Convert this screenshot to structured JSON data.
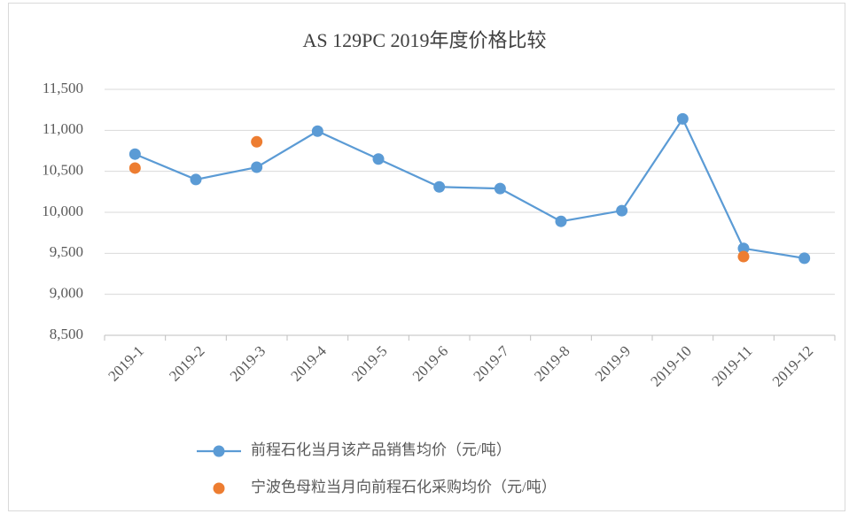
{
  "chart_data": {
    "type": "line",
    "title": "AS 129PC  2019年度价格比较",
    "categories": [
      "2019-1",
      "2019-2",
      "2019-3",
      "2019-4",
      "2019-5",
      "2019-6",
      "2019-7",
      "2019-8",
      "2019-9",
      "2019-10",
      "2019-11",
      "2019-12"
    ],
    "series": [
      {
        "name": "前程石化当月该产品销售均价（元/吨）",
        "color": "#5b9bd5",
        "show_line": true,
        "values": [
          10710,
          10400,
          10550,
          10990,
          10650,
          10310,
          10290,
          9890,
          10020,
          11140,
          9560,
          9440
        ]
      },
      {
        "name": "宁波色母粒当月向前程石化采购均价（元/吨）",
        "color": "#ed7d31",
        "show_line": false,
        "values": [
          10540,
          null,
          10860,
          null,
          null,
          null,
          null,
          null,
          null,
          null,
          9460,
          null
        ]
      }
    ],
    "ylim": [
      8500,
      11500
    ],
    "yticks": [
      {
        "value": 8500,
        "label": "8,500"
      },
      {
        "value": 9000,
        "label": "9,000"
      },
      {
        "value": 9500,
        "label": "9,500"
      },
      {
        "value": 10000,
        "label": "10,000"
      },
      {
        "value": 10500,
        "label": "10,500"
      },
      {
        "value": 11000,
        "label": "11,000"
      },
      {
        "value": 11500,
        "label": "11,500"
      }
    ],
    "grid": true,
    "legend": "bottom"
  }
}
